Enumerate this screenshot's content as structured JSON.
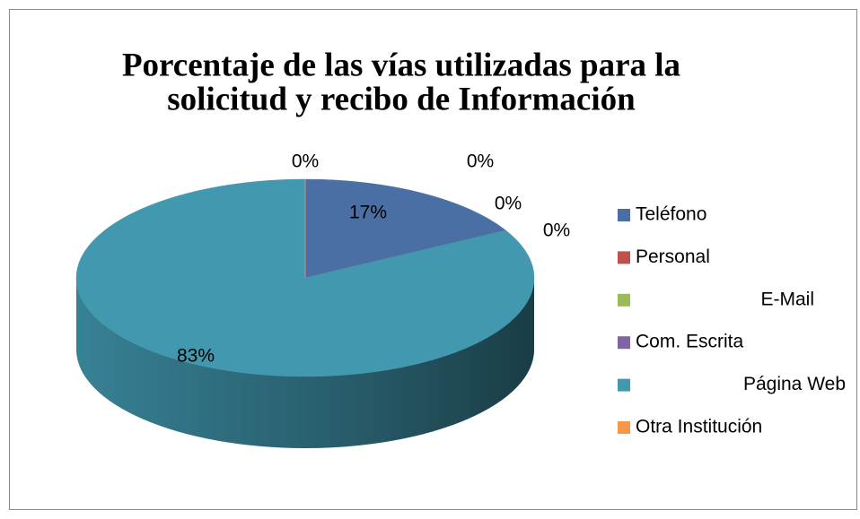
{
  "chart_data": {
    "type": "pie",
    "title_lines": [
      "Porcentaje de las vías utilizadas para la",
      "solicitud  y recibo de Información"
    ],
    "categories": [
      "Teléfono",
      "Personal",
      "E-Mail",
      "Com. Escrita",
      "Página Web",
      "Otra Institución"
    ],
    "values": [
      17,
      0,
      0,
      0,
      83,
      0
    ],
    "value_labels": [
      "17%",
      "0%",
      "0%",
      "0%",
      "83%",
      "0%"
    ],
    "colors": [
      "#4a6fa5",
      "#c0504d",
      "#9bbb59",
      "#8064a2",
      "#4198af",
      "#f79646"
    ],
    "legend": "right"
  }
}
